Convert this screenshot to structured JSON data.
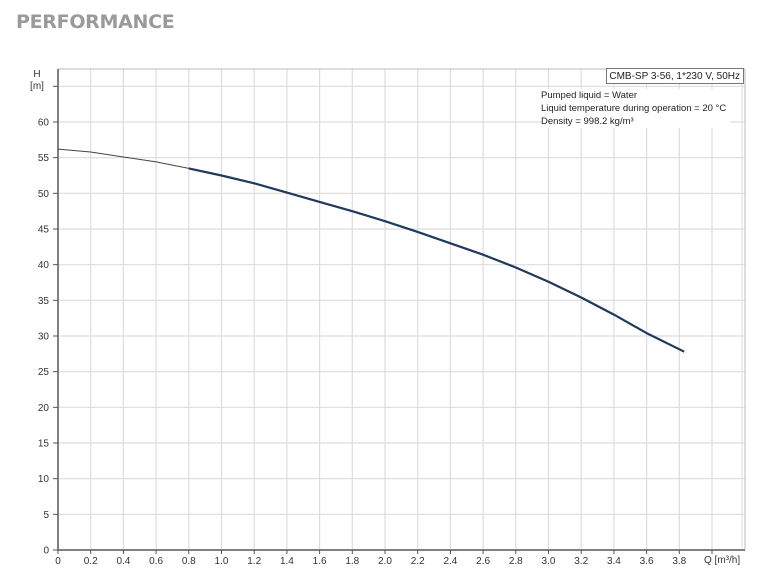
{
  "header": {
    "title": "PERFORMANCE"
  },
  "legend": {
    "product": "CMB-SP 3-56, 1*230 V, 50Hz",
    "lines": [
      "Pumped liquid = Water",
      "Liquid temperature during operation = 20 °C",
      "Density = 998.2 kg/m³"
    ]
  },
  "axes": {
    "y_label": "H",
    "y_unit": "[m]",
    "x_label": "Q [m³/h]"
  },
  "colors": {
    "curve": "#1f3a5a",
    "curve_thin": "#444444",
    "grid": "#dddddd",
    "axis": "#808080"
  },
  "chart_data": {
    "type": "line",
    "title": "PERFORMANCE",
    "xlabel": "Q [m³/h]",
    "ylabel": "H [m]",
    "xlim": [
      0,
      4.2
    ],
    "ylim": [
      0,
      67
    ],
    "x_ticks": [
      "0",
      "0.2",
      "0.4",
      "0.6",
      "0.8",
      "1.0",
      "1.2",
      "1.4",
      "1.6",
      "1.8",
      "2.0",
      "2.2",
      "2.4",
      "2.6",
      "2.8",
      "3.0",
      "3.2",
      "3.4",
      "3.6",
      "3.8"
    ],
    "y_ticks": [
      "0",
      "5",
      "10",
      "15",
      "20",
      "25",
      "30",
      "35",
      "40",
      "45",
      "50",
      "55",
      "60"
    ],
    "grid": true,
    "legend_position": "top-right",
    "series": [
      {
        "name": "CMB-SP 3-56, 1*230 V, 50Hz",
        "x": [
          0,
          0.2,
          0.4,
          0.6,
          0.8,
          1.0,
          1.2,
          1.4,
          1.6,
          1.8,
          2.0,
          2.2,
          2.4,
          2.6,
          2.8,
          3.0,
          3.2,
          3.4,
          3.6,
          3.83
        ],
        "y": [
          56.2,
          55.8,
          55.1,
          54.4,
          53.5,
          52.5,
          51.4,
          50.1,
          48.8,
          47.5,
          46.1,
          44.6,
          43.0,
          41.4,
          39.6,
          37.6,
          35.4,
          33.0,
          30.4,
          27.8
        ],
        "thin_segment_until_x": 0.8
      }
    ]
  }
}
